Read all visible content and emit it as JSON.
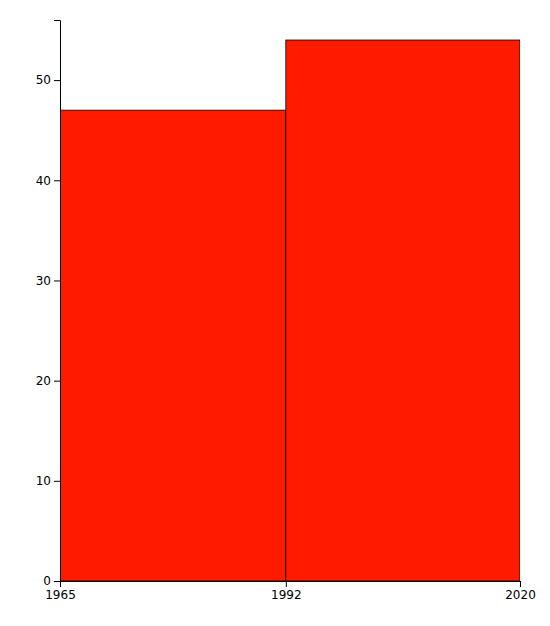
{
  "chart_data": {
    "type": "histogram",
    "bins": [
      1965,
      1992,
      2020
    ],
    "values": [
      47,
      54
    ],
    "color": "#FF1A00",
    "xlim": [
      1965,
      2020
    ],
    "xticks": [
      1965,
      1992,
      2020
    ],
    "ylim": [
      0,
      56
    ],
    "yticks": [
      0,
      10,
      20,
      30,
      40,
      50
    ],
    "grid": false
  }
}
